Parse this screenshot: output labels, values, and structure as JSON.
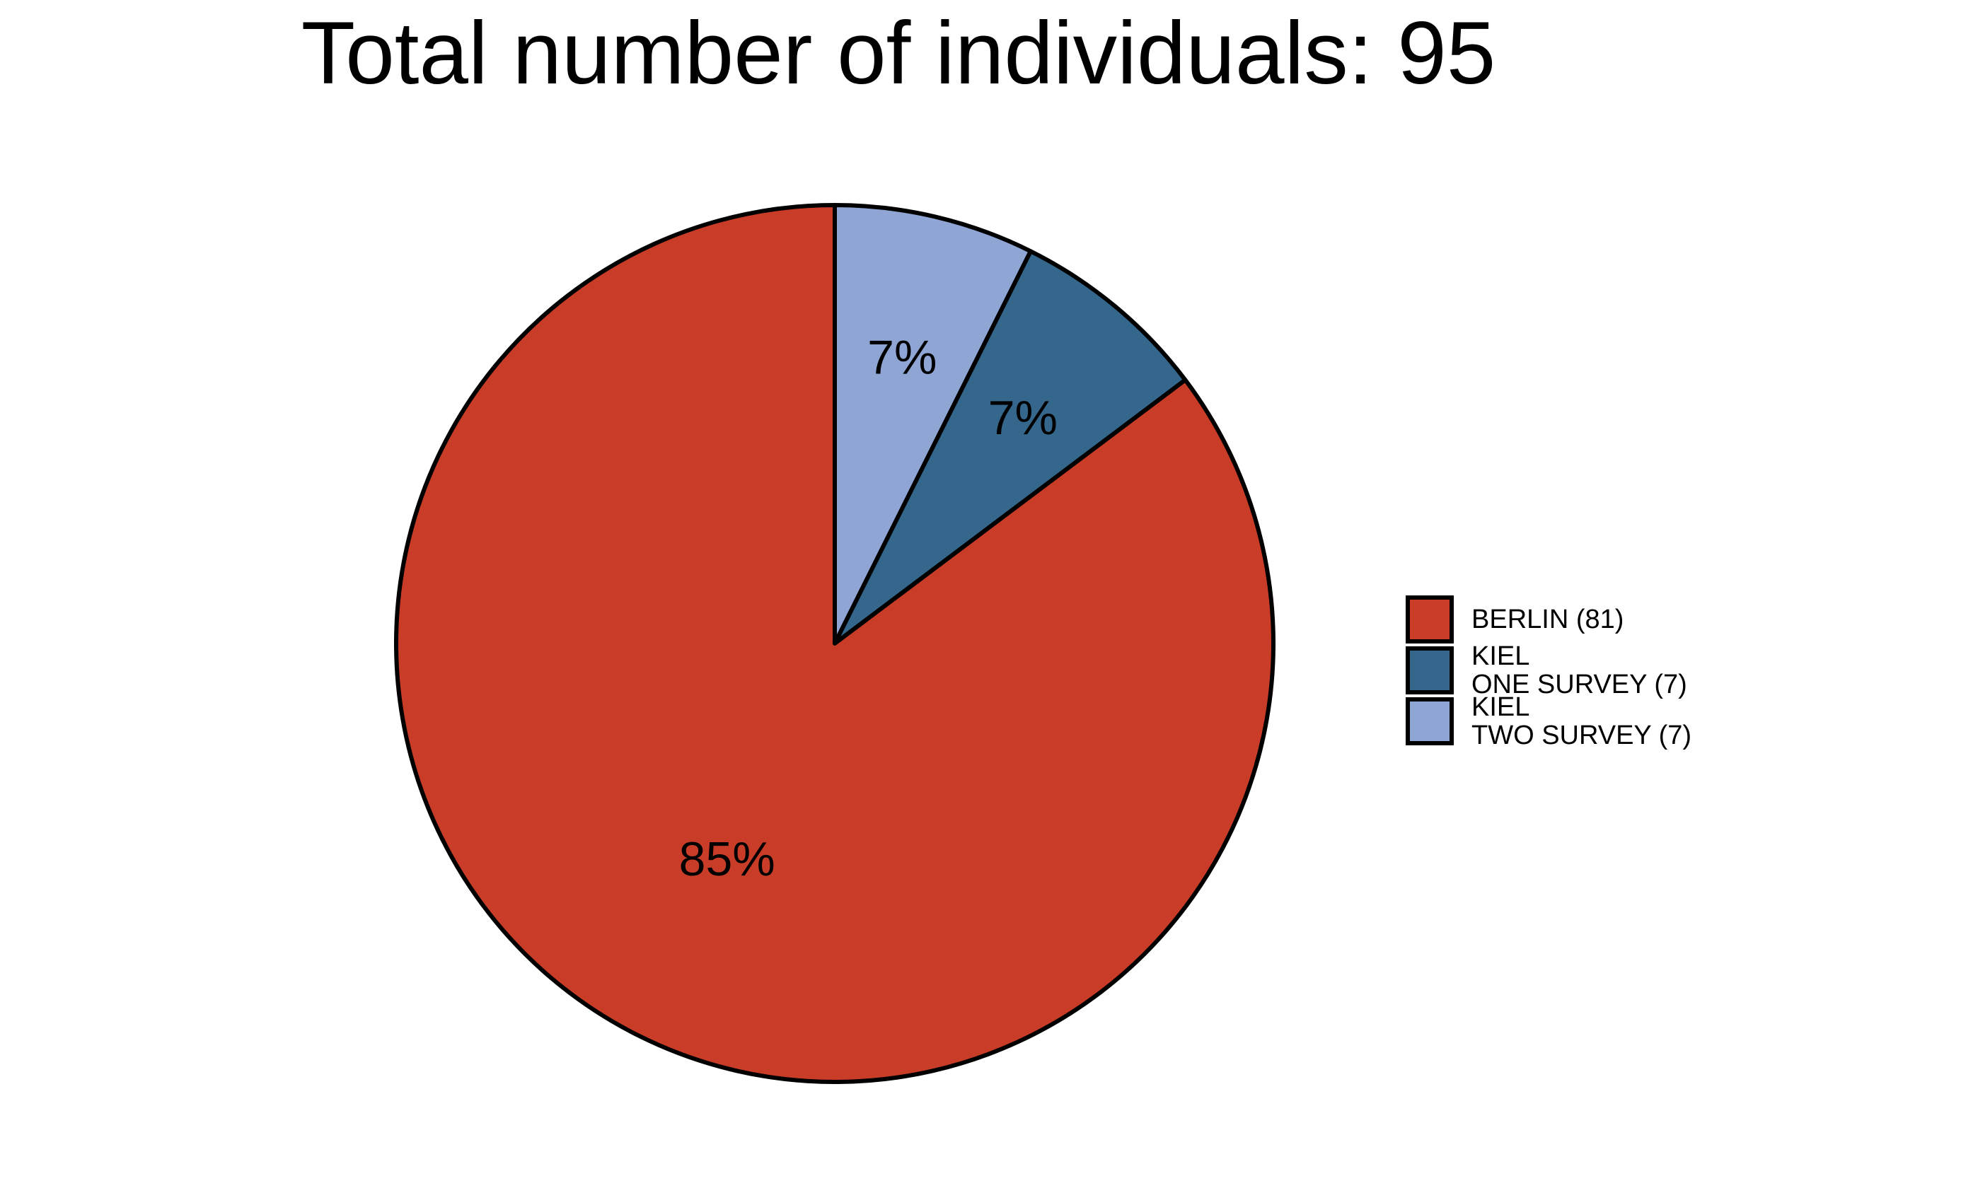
{
  "chart_data": {
    "type": "pie",
    "title": "Total number of individuals: 95",
    "start": "12 o'clock",
    "direction": "clockwise",
    "legend_position": "right",
    "slices": [
      {
        "name": "BERLIN (81)",
        "legend_lines": [
          "BERLIN (81)"
        ],
        "value": 81,
        "label": "85%",
        "color": "#c93c27"
      },
      {
        "name": "KIEL ONE SURVEY (7)",
        "legend_lines": [
          "KIEL",
          "ONE SURVEY (7)"
        ],
        "value": 7,
        "label": "7%",
        "color": "#35678c"
      },
      {
        "name": "KIEL TWO SURVEY (7)",
        "legend_lines": [
          "KIEL",
          "TWO SURVEY (7)"
        ],
        "value": 7,
        "label": "7%",
        "color": "#8fa6d4"
      }
    ],
    "draw_order": [
      2,
      1,
      0
    ]
  }
}
